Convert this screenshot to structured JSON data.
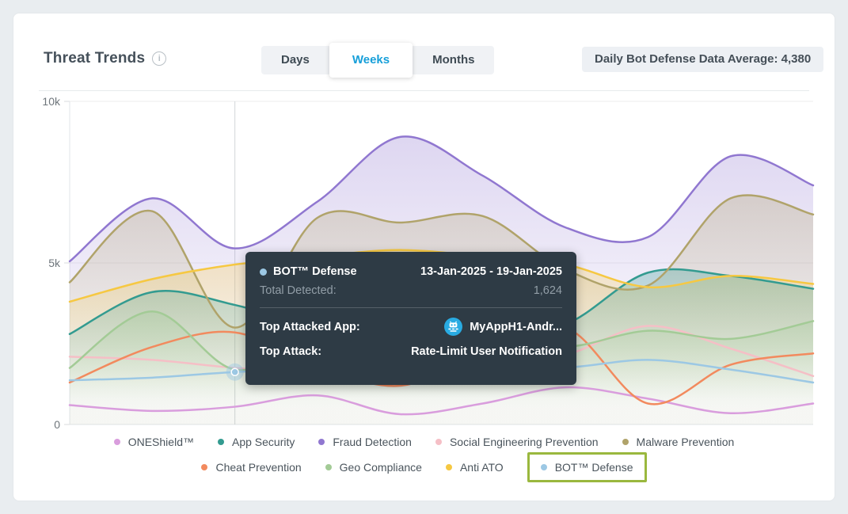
{
  "header": {
    "title": "Threat Trends",
    "tabs": [
      {
        "label": "Days",
        "active": false
      },
      {
        "label": "Weeks",
        "active": true
      },
      {
        "label": "Months",
        "active": false
      }
    ],
    "active_tab_color": "#169fd9",
    "summary_badge": "Daily Bot Defense Data Average: 4,380"
  },
  "chart_data": {
    "type": "area",
    "title": "Threat Trends",
    "xlabel": "",
    "ylabel": "",
    "y_ticks": [
      "0",
      "5k",
      "10k"
    ],
    "ylim": [
      0,
      10000
    ],
    "grid": "horizontal",
    "legend_position": "bottom",
    "x_points": 10,
    "series": [
      {
        "name": "ONEShield™",
        "color": "#d99ddd",
        "fill": false,
        "values": [
          600,
          420,
          550,
          900,
          320,
          650,
          1150,
          800,
          350,
          650
        ]
      },
      {
        "name": "App Security",
        "color": "#339b90",
        "fill": true,
        "values": [
          2800,
          4100,
          3700,
          3000,
          2800,
          2800,
          3100,
          4700,
          4600,
          4200
        ]
      },
      {
        "name": "Fraud Detection",
        "color": "#9077d0",
        "fill": true,
        "values": [
          5050,
          7000,
          5450,
          6900,
          8900,
          7700,
          6100,
          5800,
          8300,
          7400
        ]
      },
      {
        "name": "Social Engineering Prevention",
        "color": "#f5bfc6",
        "fill": false,
        "values": [
          2100,
          2000,
          1750,
          1600,
          1550,
          1800,
          2150,
          3050,
          2350,
          1500
        ]
      },
      {
        "name": "Malware Prevention",
        "color": "#b0a36a",
        "fill": true,
        "values": [
          4400,
          6600,
          3000,
          6400,
          6250,
          6450,
          4800,
          4300,
          7000,
          6500
        ]
      },
      {
        "name": "Cheat Prevention",
        "color": "#f28a5e",
        "fill": false,
        "values": [
          1300,
          2400,
          2850,
          1800,
          1200,
          2200,
          3000,
          650,
          1850,
          2200
        ]
      },
      {
        "name": "Geo Compliance",
        "color": "#a3cb96",
        "fill": true,
        "values": [
          1750,
          3500,
          1700,
          2600,
          2900,
          2700,
          2400,
          2900,
          2650,
          3200
        ]
      },
      {
        "name": "Anti ATO",
        "color": "#f6c842",
        "fill": true,
        "values": [
          3800,
          4500,
          4950,
          5200,
          5400,
          5200,
          4950,
          4250,
          4600,
          4350
        ]
      },
      {
        "name": "BOT™ Defense",
        "color": "#9cc8e4",
        "fill": false,
        "values": [
          1370,
          1450,
          1624,
          1700,
          1750,
          1780,
          1760,
          2000,
          1700,
          1300
        ]
      }
    ],
    "hovered": {
      "series": "BOT™ Defense",
      "index": 2,
      "value": 1624
    }
  },
  "tooltip": {
    "series": "BOT™ Defense",
    "series_color": "#9cc8e4",
    "date_range": "13-Jan-2025 - 19-Jan-2025",
    "total_detected_label": "Total Detected:",
    "total_detected_value": "1,624",
    "top_attacked_app_label": "Top Attacked App:",
    "top_attacked_app_value": "MyAppH1-Andr...",
    "top_attack_label": "Top Attack:",
    "top_attack_value": "Rate-Limit User Notification"
  },
  "legend": {
    "rows": [
      [
        "ONEShield™",
        "App Security",
        "Fraud Detection",
        "Social Engineering Prevention",
        "Malware Prevention"
      ],
      [
        "Cheat Prevention",
        "Geo Compliance",
        "Anti ATO",
        "BOT™ Defense"
      ]
    ],
    "highlighted_item": "BOT™ Defense",
    "highlight_color": "#9ab83e"
  }
}
